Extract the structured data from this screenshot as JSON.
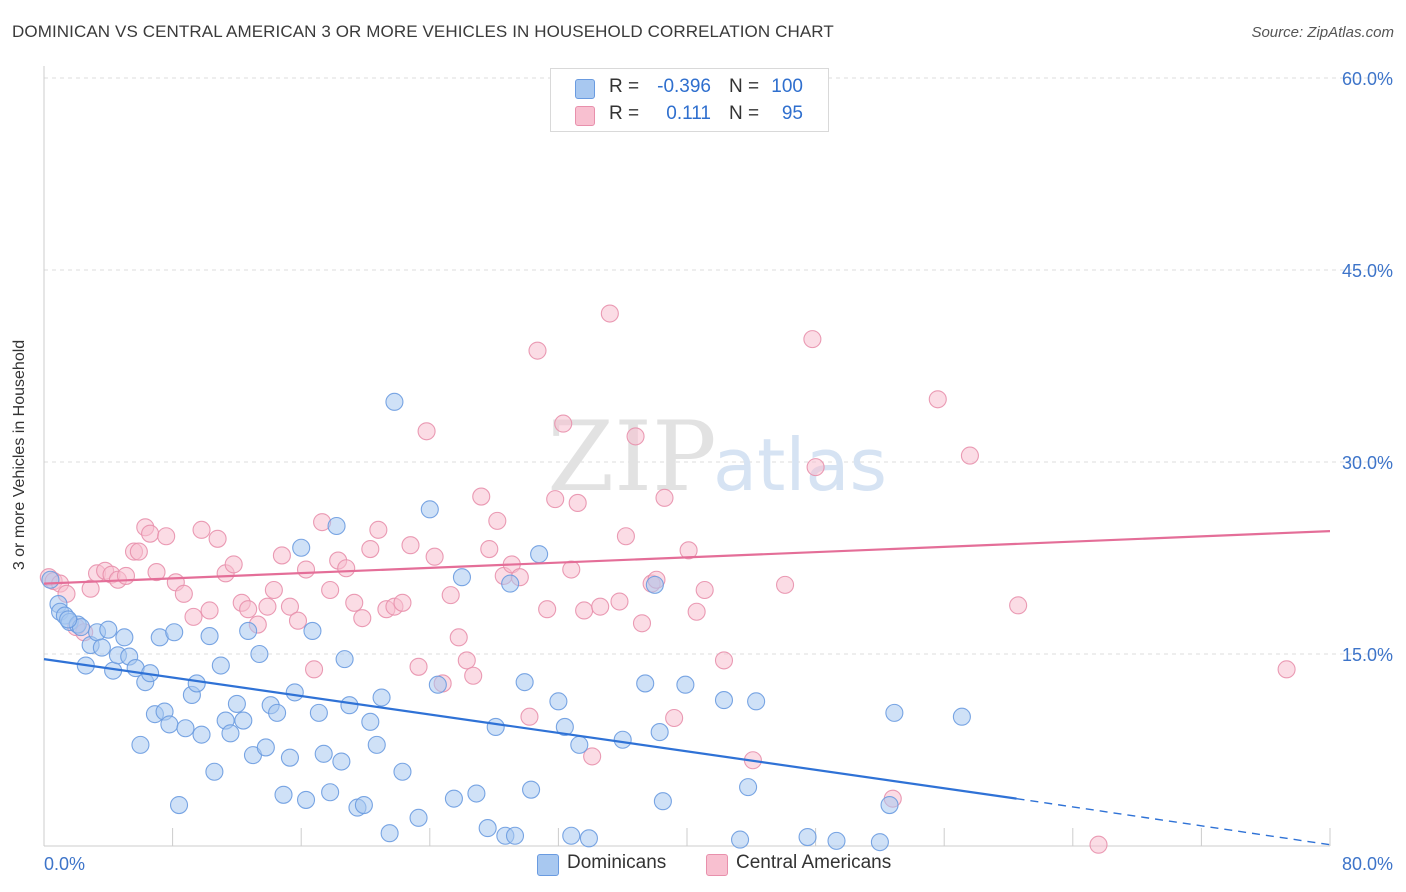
{
  "header": {
    "title": "DOMINICAN VS CENTRAL AMERICAN 3 OR MORE VEHICLES IN HOUSEHOLD CORRELATION CHART",
    "source": "Source: ZipAtlas.com"
  },
  "watermark": {
    "zip": "ZIP",
    "atlas": "atlas"
  },
  "legend": {
    "rows": [
      {
        "r_label": "R =",
        "r_value": "-0.396",
        "n_label": "N =",
        "n_value": "100",
        "color": "#a8c8f0",
        "border": "#6a9be0"
      },
      {
        "r_label": "R =",
        "r_value": "0.111",
        "n_label": "N =",
        "n_value": "95",
        "color": "#f8c0d0",
        "border": "#e890ac"
      }
    ]
  },
  "bottom_legend": {
    "items": [
      {
        "label": "Dominicans",
        "color": "#a8c8f0",
        "border": "#6a9be0"
      },
      {
        "label": "Central Americans",
        "color": "#f8c0d0",
        "border": "#e890ac"
      }
    ]
  },
  "chart_data": {
    "type": "scatter",
    "title": "DOMINICAN VS CENTRAL AMERICAN 3 OR MORE VEHICLES IN HOUSEHOLD CORRELATION CHART",
    "xlabel": "",
    "ylabel": "3 or more Vehicles in Household",
    "xlim": [
      0,
      80
    ],
    "ylim": [
      0,
      60
    ],
    "x_tick_labels": [
      "0.0%",
      "80.0%"
    ],
    "y_ticks": [
      15,
      30,
      45,
      60
    ],
    "y_tick_labels": [
      "15.0%",
      "30.0%",
      "45.0%",
      "60.0%"
    ],
    "grid": true,
    "legend_position": "top-center",
    "series": [
      {
        "name": "Dominicans",
        "color": "#6a9be0",
        "fill": "#a8c8f0",
        "trend": {
          "x": [
            0,
            60.5
          ],
          "y": [
            14.6,
            3.7
          ],
          "dashed_to": [
            80,
            0.1
          ]
        },
        "points": [
          [
            0.4,
            20.8
          ],
          [
            0.9,
            18.9
          ],
          [
            1.0,
            18.3
          ],
          [
            1.3,
            18.0
          ],
          [
            1.6,
            17.5
          ],
          [
            2.1,
            17.3
          ],
          [
            2.3,
            17.1
          ],
          [
            2.6,
            14.1
          ],
          [
            2.9,
            15.7
          ],
          [
            3.3,
            16.7
          ],
          [
            3.6,
            15.5
          ],
          [
            4.0,
            16.9
          ],
          [
            4.3,
            13.7
          ],
          [
            4.6,
            14.9
          ],
          [
            5.0,
            16.3
          ],
          [
            5.3,
            14.8
          ],
          [
            5.7,
            13.9
          ],
          [
            6.0,
            7.9
          ],
          [
            6.3,
            12.8
          ],
          [
            6.6,
            13.5
          ],
          [
            6.9,
            10.3
          ],
          [
            7.2,
            16.3
          ],
          [
            7.5,
            10.5
          ],
          [
            7.8,
            9.5
          ],
          [
            8.1,
            16.7
          ],
          [
            8.4,
            3.2
          ],
          [
            8.8,
            9.2
          ],
          [
            9.2,
            11.8
          ],
          [
            9.5,
            12.7
          ],
          [
            9.8,
            8.7
          ],
          [
            10.3,
            16.4
          ],
          [
            10.6,
            5.8
          ],
          [
            11.0,
            14.1
          ],
          [
            11.3,
            9.8
          ],
          [
            11.6,
            8.8
          ],
          [
            12.0,
            11.1
          ],
          [
            12.4,
            9.8
          ],
          [
            12.7,
            16.8
          ],
          [
            13.0,
            7.1
          ],
          [
            13.4,
            15.0
          ],
          [
            13.8,
            7.7
          ],
          [
            14.1,
            11.0
          ],
          [
            14.5,
            10.4
          ],
          [
            14.9,
            4.0
          ],
          [
            15.3,
            6.9
          ],
          [
            15.6,
            12.0
          ],
          [
            16.0,
            23.3
          ],
          [
            16.3,
            3.6
          ],
          [
            16.7,
            16.8
          ],
          [
            17.1,
            10.4
          ],
          [
            17.4,
            7.2
          ],
          [
            17.8,
            4.2
          ],
          [
            18.2,
            25.0
          ],
          [
            18.5,
            6.6
          ],
          [
            18.7,
            14.6
          ],
          [
            19.0,
            11.0
          ],
          [
            19.5,
            3.0
          ],
          [
            19.9,
            3.2
          ],
          [
            20.3,
            9.7
          ],
          [
            20.7,
            7.9
          ],
          [
            21.0,
            11.6
          ],
          [
            21.5,
            1.0
          ],
          [
            21.8,
            34.7
          ],
          [
            22.3,
            5.8
          ],
          [
            23.3,
            2.2
          ],
          [
            24.0,
            26.3
          ],
          [
            24.5,
            12.6
          ],
          [
            25.5,
            3.7
          ],
          [
            26.0,
            21.0
          ],
          [
            26.9,
            4.1
          ],
          [
            27.6,
            1.4
          ],
          [
            28.1,
            9.3
          ],
          [
            28.7,
            0.8
          ],
          [
            29.0,
            20.5
          ],
          [
            29.3,
            0.8
          ],
          [
            29.9,
            12.8
          ],
          [
            30.3,
            4.4
          ],
          [
            30.8,
            22.8
          ],
          [
            32.0,
            11.3
          ],
          [
            32.4,
            9.3
          ],
          [
            32.8,
            0.8
          ],
          [
            33.3,
            7.9
          ],
          [
            33.9,
            0.6
          ],
          [
            36.0,
            8.3
          ],
          [
            37.4,
            12.7
          ],
          [
            38.0,
            20.4
          ],
          [
            38.3,
            8.9
          ],
          [
            38.5,
            3.5
          ],
          [
            39.9,
            12.6
          ],
          [
            42.3,
            11.4
          ],
          [
            43.3,
            0.5
          ],
          [
            43.8,
            4.6
          ],
          [
            44.3,
            11.3
          ],
          [
            47.5,
            0.7
          ],
          [
            49.3,
            0.4
          ],
          [
            52.0,
            0.3
          ],
          [
            52.6,
            3.2
          ],
          [
            52.9,
            10.4
          ],
          [
            57.1,
            10.1
          ],
          [
            1.5,
            17.7
          ]
        ]
      },
      {
        "name": "Central Americans",
        "color": "#e890ac",
        "fill": "#f8c0d0",
        "trend": {
          "x": [
            0,
            80
          ],
          "y": [
            20.5,
            24.6
          ]
        },
        "points": [
          [
            0.3,
            21.0
          ],
          [
            0.6,
            20.7
          ],
          [
            1.0,
            20.5
          ],
          [
            1.4,
            19.7
          ],
          [
            2.0,
            17.1
          ],
          [
            2.5,
            16.7
          ],
          [
            2.9,
            20.1
          ],
          [
            3.3,
            21.3
          ],
          [
            3.8,
            21.5
          ],
          [
            4.2,
            21.2
          ],
          [
            4.6,
            20.8
          ],
          [
            5.1,
            21.1
          ],
          [
            5.6,
            23.0
          ],
          [
            5.9,
            23.0
          ],
          [
            6.3,
            24.9
          ],
          [
            6.6,
            24.4
          ],
          [
            7.0,
            21.4
          ],
          [
            7.6,
            24.2
          ],
          [
            8.2,
            20.6
          ],
          [
            8.7,
            19.7
          ],
          [
            9.3,
            17.9
          ],
          [
            9.8,
            24.7
          ],
          [
            10.3,
            18.4
          ],
          [
            10.8,
            24.0
          ],
          [
            11.3,
            21.3
          ],
          [
            11.8,
            22.0
          ],
          [
            12.3,
            19.0
          ],
          [
            12.7,
            18.5
          ],
          [
            13.3,
            17.3
          ],
          [
            13.9,
            18.7
          ],
          [
            14.3,
            20.0
          ],
          [
            14.8,
            22.7
          ],
          [
            15.3,
            18.7
          ],
          [
            15.8,
            17.6
          ],
          [
            16.3,
            21.6
          ],
          [
            16.8,
            13.8
          ],
          [
            17.3,
            25.3
          ],
          [
            17.8,
            20.0
          ],
          [
            18.3,
            22.3
          ],
          [
            18.8,
            21.7
          ],
          [
            19.3,
            19.0
          ],
          [
            19.8,
            17.8
          ],
          [
            20.3,
            23.2
          ],
          [
            20.8,
            24.7
          ],
          [
            21.3,
            18.5
          ],
          [
            21.8,
            18.7
          ],
          [
            22.3,
            19.0
          ],
          [
            22.8,
            23.5
          ],
          [
            23.3,
            14.0
          ],
          [
            23.8,
            32.4
          ],
          [
            24.3,
            22.6
          ],
          [
            24.8,
            12.7
          ],
          [
            25.3,
            19.6
          ],
          [
            25.8,
            16.3
          ],
          [
            26.3,
            14.5
          ],
          [
            26.7,
            13.3
          ],
          [
            27.2,
            27.3
          ],
          [
            27.7,
            23.2
          ],
          [
            28.2,
            25.4
          ],
          [
            28.6,
            21.1
          ],
          [
            29.1,
            22.0
          ],
          [
            29.6,
            21.0
          ],
          [
            30.2,
            10.1
          ],
          [
            30.7,
            38.7
          ],
          [
            31.3,
            18.5
          ],
          [
            31.8,
            27.1
          ],
          [
            32.3,
            33.0
          ],
          [
            32.8,
            21.6
          ],
          [
            33.2,
            26.8
          ],
          [
            33.6,
            18.4
          ],
          [
            34.1,
            7.0
          ],
          [
            34.6,
            18.7
          ],
          [
            35.2,
            41.6
          ],
          [
            35.8,
            19.1
          ],
          [
            36.2,
            24.2
          ],
          [
            36.8,
            32.0
          ],
          [
            37.2,
            17.4
          ],
          [
            37.8,
            20.5
          ],
          [
            38.1,
            20.8
          ],
          [
            38.6,
            27.2
          ],
          [
            39.2,
            10.0
          ],
          [
            40.1,
            23.1
          ],
          [
            40.6,
            18.3
          ],
          [
            41.1,
            20.0
          ],
          [
            42.3,
            14.5
          ],
          [
            44.1,
            6.7
          ],
          [
            46.1,
            20.4
          ],
          [
            47.8,
            39.6
          ],
          [
            48.0,
            29.6
          ],
          [
            55.6,
            34.9
          ],
          [
            57.6,
            30.5
          ],
          [
            60.6,
            18.8
          ],
          [
            65.6,
            0.1
          ],
          [
            77.3,
            13.8
          ],
          [
            52.8,
            3.7
          ]
        ]
      }
    ]
  }
}
